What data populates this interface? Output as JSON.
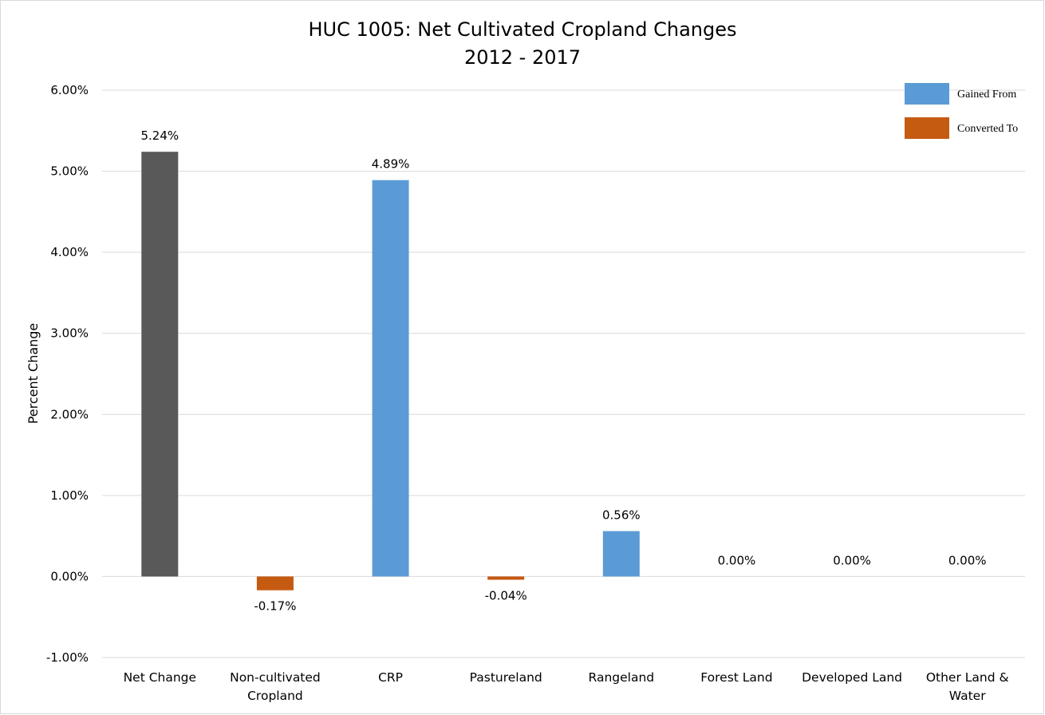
{
  "chart_data": {
    "type": "bar",
    "title": [
      "HUC 1005: Net Cultivated Cropland Changes",
      "2012 - 2017"
    ],
    "xlabel": "",
    "ylabel": "Percent Change",
    "ylim": [
      -1.0,
      6.0
    ],
    "yticks": [
      -1.0,
      0.0,
      1.0,
      2.0,
      3.0,
      4.0,
      5.0,
      6.0
    ],
    "ytick_labels": [
      "-1.00%",
      "0.00%",
      "1.00%",
      "2.00%",
      "3.00%",
      "4.00%",
      "5.00%",
      "6.00%"
    ],
    "grid": true,
    "legend_placement": "top-right",
    "categories": [
      [
        "Net Change"
      ],
      [
        "Non-cultivated",
        "Cropland"
      ],
      [
        "CRP"
      ],
      [
        "Pastureland"
      ],
      [
        "Rangeland"
      ],
      [
        "Forest Land"
      ],
      [
        "Developed Land"
      ],
      [
        "Other Land &",
        "Water"
      ]
    ],
    "values": [
      5.24,
      -0.17,
      4.89,
      -0.04,
      0.56,
      0.0,
      0.0,
      0.0
    ],
    "data_labels": [
      "5.24%",
      "-0.17%",
      "4.89%",
      "-0.04%",
      "0.56%",
      "0.00%",
      "0.00%",
      "0.00%"
    ],
    "bar_groups": [
      "net",
      "converted",
      "gained",
      "converted",
      "gained",
      "gained",
      "gained",
      "gained"
    ],
    "colors": {
      "net": "#595959",
      "gained": "#5b9bd5",
      "converted": "#c55a11"
    },
    "legend": [
      {
        "label": "Gained From",
        "group": "gained"
      },
      {
        "label": "Converted To",
        "group": "converted"
      }
    ]
  }
}
